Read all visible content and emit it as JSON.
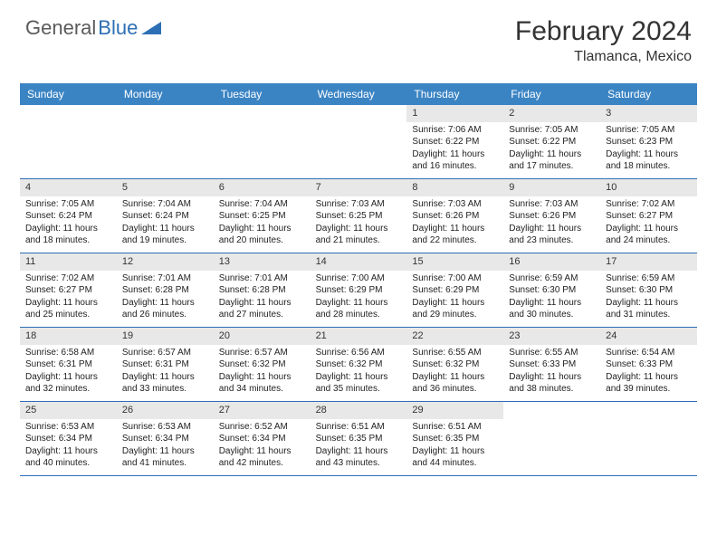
{
  "logo": {
    "text1": "General",
    "text2": "Blue"
  },
  "title": "February 2024",
  "location": "Tlamanca, Mexico",
  "colors": {
    "header_bg": "#3b84c4",
    "header_text": "#ffffff",
    "border": "#2d6fb5",
    "daynum_bg": "#e8e8e8",
    "body_text": "#222222",
    "logo_gray": "#5a5a5a",
    "logo_blue": "#2d6fb5"
  },
  "day_headers": [
    "Sunday",
    "Monday",
    "Tuesday",
    "Wednesday",
    "Thursday",
    "Friday",
    "Saturday"
  ],
  "weeks": [
    [
      null,
      null,
      null,
      null,
      {
        "n": "1",
        "sr": "7:06 AM",
        "ss": "6:22 PM",
        "dl": "11 hours and 16 minutes."
      },
      {
        "n": "2",
        "sr": "7:05 AM",
        "ss": "6:22 PM",
        "dl": "11 hours and 17 minutes."
      },
      {
        "n": "3",
        "sr": "7:05 AM",
        "ss": "6:23 PM",
        "dl": "11 hours and 18 minutes."
      }
    ],
    [
      {
        "n": "4",
        "sr": "7:05 AM",
        "ss": "6:24 PM",
        "dl": "11 hours and 18 minutes."
      },
      {
        "n": "5",
        "sr": "7:04 AM",
        "ss": "6:24 PM",
        "dl": "11 hours and 19 minutes."
      },
      {
        "n": "6",
        "sr": "7:04 AM",
        "ss": "6:25 PM",
        "dl": "11 hours and 20 minutes."
      },
      {
        "n": "7",
        "sr": "7:03 AM",
        "ss": "6:25 PM",
        "dl": "11 hours and 21 minutes."
      },
      {
        "n": "8",
        "sr": "7:03 AM",
        "ss": "6:26 PM",
        "dl": "11 hours and 22 minutes."
      },
      {
        "n": "9",
        "sr": "7:03 AM",
        "ss": "6:26 PM",
        "dl": "11 hours and 23 minutes."
      },
      {
        "n": "10",
        "sr": "7:02 AM",
        "ss": "6:27 PM",
        "dl": "11 hours and 24 minutes."
      }
    ],
    [
      {
        "n": "11",
        "sr": "7:02 AM",
        "ss": "6:27 PM",
        "dl": "11 hours and 25 minutes."
      },
      {
        "n": "12",
        "sr": "7:01 AM",
        "ss": "6:28 PM",
        "dl": "11 hours and 26 minutes."
      },
      {
        "n": "13",
        "sr": "7:01 AM",
        "ss": "6:28 PM",
        "dl": "11 hours and 27 minutes."
      },
      {
        "n": "14",
        "sr": "7:00 AM",
        "ss": "6:29 PM",
        "dl": "11 hours and 28 minutes."
      },
      {
        "n": "15",
        "sr": "7:00 AM",
        "ss": "6:29 PM",
        "dl": "11 hours and 29 minutes."
      },
      {
        "n": "16",
        "sr": "6:59 AM",
        "ss": "6:30 PM",
        "dl": "11 hours and 30 minutes."
      },
      {
        "n": "17",
        "sr": "6:59 AM",
        "ss": "6:30 PM",
        "dl": "11 hours and 31 minutes."
      }
    ],
    [
      {
        "n": "18",
        "sr": "6:58 AM",
        "ss": "6:31 PM",
        "dl": "11 hours and 32 minutes."
      },
      {
        "n": "19",
        "sr": "6:57 AM",
        "ss": "6:31 PM",
        "dl": "11 hours and 33 minutes."
      },
      {
        "n": "20",
        "sr": "6:57 AM",
        "ss": "6:32 PM",
        "dl": "11 hours and 34 minutes."
      },
      {
        "n": "21",
        "sr": "6:56 AM",
        "ss": "6:32 PM",
        "dl": "11 hours and 35 minutes."
      },
      {
        "n": "22",
        "sr": "6:55 AM",
        "ss": "6:32 PM",
        "dl": "11 hours and 36 minutes."
      },
      {
        "n": "23",
        "sr": "6:55 AM",
        "ss": "6:33 PM",
        "dl": "11 hours and 38 minutes."
      },
      {
        "n": "24",
        "sr": "6:54 AM",
        "ss": "6:33 PM",
        "dl": "11 hours and 39 minutes."
      }
    ],
    [
      {
        "n": "25",
        "sr": "6:53 AM",
        "ss": "6:34 PM",
        "dl": "11 hours and 40 minutes."
      },
      {
        "n": "26",
        "sr": "6:53 AM",
        "ss": "6:34 PM",
        "dl": "11 hours and 41 minutes."
      },
      {
        "n": "27",
        "sr": "6:52 AM",
        "ss": "6:34 PM",
        "dl": "11 hours and 42 minutes."
      },
      {
        "n": "28",
        "sr": "6:51 AM",
        "ss": "6:35 PM",
        "dl": "11 hours and 43 minutes."
      },
      {
        "n": "29",
        "sr": "6:51 AM",
        "ss": "6:35 PM",
        "dl": "11 hours and 44 minutes."
      },
      null,
      null
    ]
  ],
  "labels": {
    "sunrise": "Sunrise:",
    "sunset": "Sunset:",
    "daylight": "Daylight:"
  }
}
